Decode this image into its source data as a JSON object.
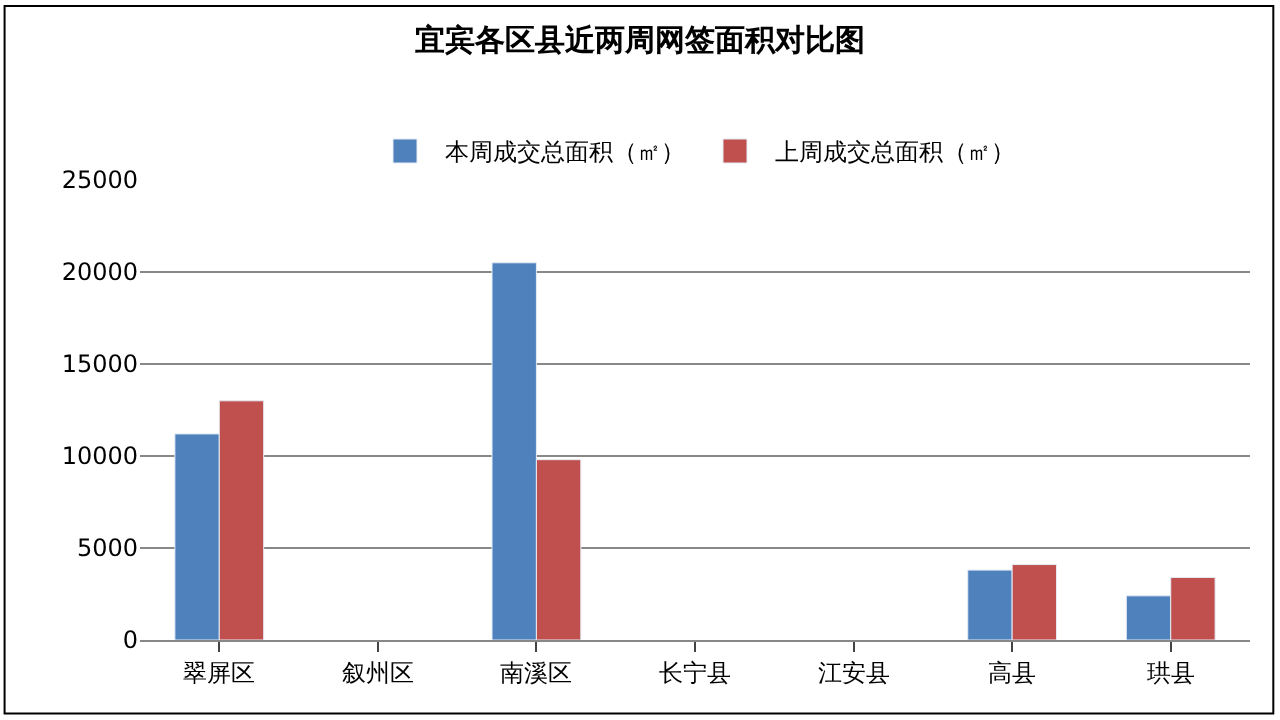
{
  "chart_data": {
    "type": "bar",
    "title": "宜宾各区县近两周网签面积对比图",
    "categories": [
      "翠屏区",
      "叙州区",
      "南溪区",
      "长宁县",
      "江安县",
      "高县",
      "珙县"
    ],
    "series": [
      {
        "name": "本周成交总面积（㎡）",
        "color": "#4f81bd",
        "values": [
          11200,
          null,
          20500,
          null,
          null,
          3800,
          2400
        ]
      },
      {
        "name": "上周成交总面积（㎡）",
        "color": "#c0504d",
        "values": [
          13000,
          null,
          9800,
          null,
          null,
          4100,
          3400
        ]
      }
    ],
    "ylim": [
      0,
      25000
    ],
    "yticks": [
      0,
      5000,
      10000,
      15000,
      20000,
      25000
    ],
    "grid": "y",
    "legend": "top"
  }
}
